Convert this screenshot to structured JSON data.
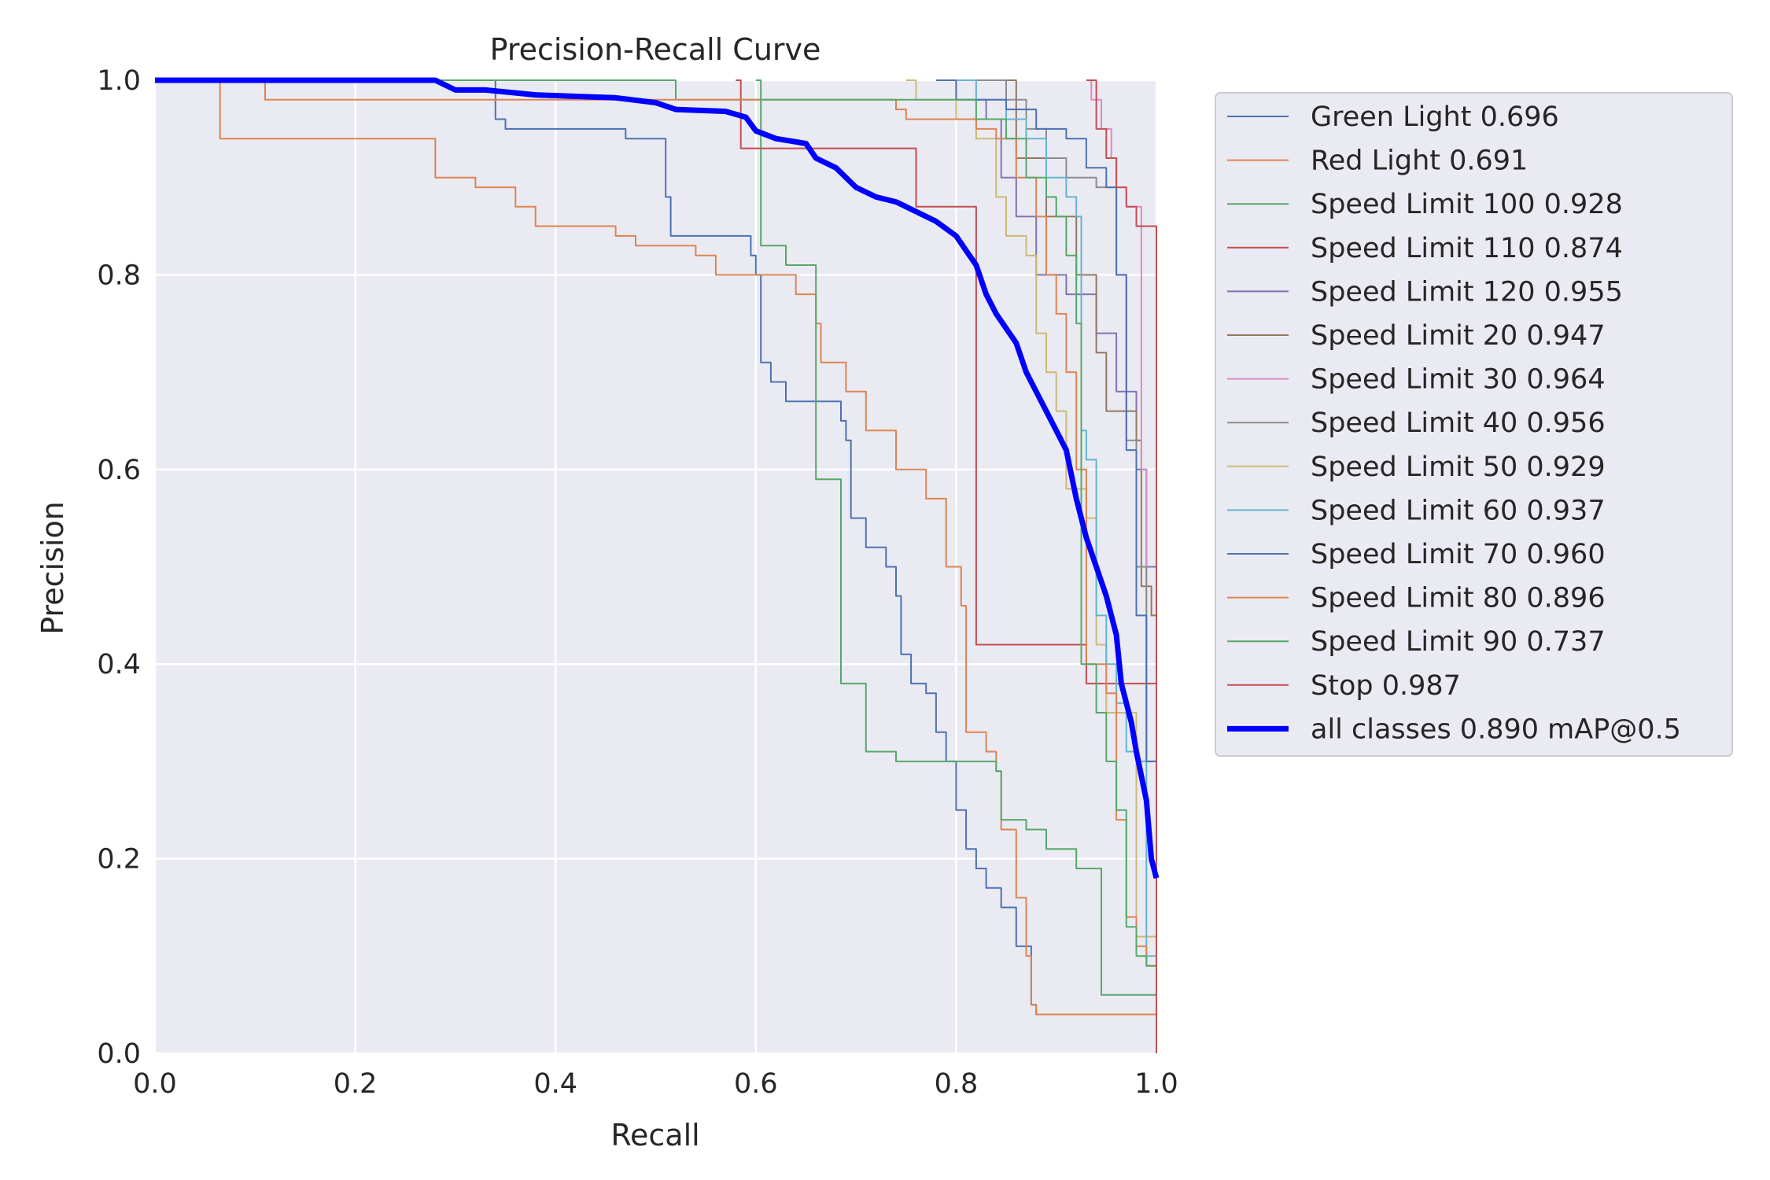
{
  "chart_data": {
    "type": "line",
    "title": "Precision-Recall Curve",
    "xlabel": "Recall",
    "ylabel": "Precision",
    "xlim": [
      0,
      1
    ],
    "ylim": [
      0,
      1
    ],
    "x_ticks": [
      "0.0",
      "0.2",
      "0.4",
      "0.6",
      "0.8",
      "1.0"
    ],
    "y_ticks": [
      "0.0",
      "0.2",
      "0.4",
      "0.6",
      "0.8",
      "1.0"
    ],
    "grid": true,
    "legend_position": "outside-right",
    "series": [
      {
        "name": "Green Light 0.696",
        "color": "#4c72b0",
        "points": [
          [
            0,
            1
          ],
          [
            0.335,
            1
          ],
          [
            0.34,
            0.96
          ],
          [
            0.35,
            0.95
          ],
          [
            0.46,
            0.95
          ],
          [
            0.47,
            0.94
          ],
          [
            0.5,
            0.94
          ],
          [
            0.51,
            0.88
          ],
          [
            0.515,
            0.84
          ],
          [
            0.585,
            0.84
          ],
          [
            0.595,
            0.82
          ],
          [
            0.6,
            0.8
          ],
          [
            0.605,
            0.71
          ],
          [
            0.615,
            0.69
          ],
          [
            0.63,
            0.67
          ],
          [
            0.67,
            0.67
          ],
          [
            0.685,
            0.65
          ],
          [
            0.69,
            0.63
          ],
          [
            0.695,
            0.55
          ],
          [
            0.71,
            0.52
          ],
          [
            0.73,
            0.5
          ],
          [
            0.74,
            0.47
          ],
          [
            0.745,
            0.41
          ],
          [
            0.755,
            0.38
          ],
          [
            0.77,
            0.37
          ],
          [
            0.78,
            0.33
          ],
          [
            0.79,
            0.3
          ],
          [
            0.8,
            0.25
          ],
          [
            0.81,
            0.21
          ],
          [
            0.82,
            0.19
          ],
          [
            0.83,
            0.17
          ],
          [
            0.845,
            0.15
          ],
          [
            0.86,
            0.11
          ],
          [
            0.875,
            0.05
          ],
          [
            0.88,
            0.04
          ],
          [
            1,
            0
          ]
        ]
      },
      {
        "name": "Red Light 0.691",
        "color": "#dd8452",
        "points": [
          [
            0,
            1
          ],
          [
            0.06,
            1
          ],
          [
            0.065,
            0.94
          ],
          [
            0.275,
            0.94
          ],
          [
            0.28,
            0.9
          ],
          [
            0.32,
            0.89
          ],
          [
            0.36,
            0.87
          ],
          [
            0.38,
            0.85
          ],
          [
            0.46,
            0.84
          ],
          [
            0.48,
            0.83
          ],
          [
            0.54,
            0.82
          ],
          [
            0.56,
            0.8
          ],
          [
            0.6,
            0.8
          ],
          [
            0.64,
            0.78
          ],
          [
            0.66,
            0.75
          ],
          [
            0.665,
            0.71
          ],
          [
            0.69,
            0.68
          ],
          [
            0.71,
            0.64
          ],
          [
            0.74,
            0.6
          ],
          [
            0.77,
            0.57
          ],
          [
            0.79,
            0.5
          ],
          [
            0.805,
            0.46
          ],
          [
            0.81,
            0.33
          ],
          [
            0.83,
            0.31
          ],
          [
            0.84,
            0.29
          ],
          [
            0.845,
            0.23
          ],
          [
            0.86,
            0.16
          ],
          [
            0.87,
            0.1
          ],
          [
            0.875,
            0.05
          ],
          [
            0.88,
            0.04
          ],
          [
            1,
            0
          ]
        ]
      },
      {
        "name": "Speed Limit 100 0.928",
        "color": "#55a868",
        "points": [
          [
            0,
            1
          ],
          [
            0.52,
            1
          ],
          [
            0.52,
            0.98
          ],
          [
            0.6,
            0.98
          ],
          [
            0.605,
            0.83
          ],
          [
            0.63,
            0.81
          ],
          [
            0.66,
            0.59
          ],
          [
            0.685,
            0.38
          ],
          [
            0.71,
            0.31
          ],
          [
            0.74,
            0.3
          ],
          [
            0.84,
            0.29
          ],
          [
            0.845,
            0.24
          ],
          [
            0.87,
            0.23
          ],
          [
            0.89,
            0.21
          ],
          [
            0.92,
            0.19
          ],
          [
            0.945,
            0.06
          ],
          [
            1,
            0
          ]
        ]
      },
      {
        "name": "Speed Limit 110 0.874",
        "color": "#c44e52",
        "points": [
          [
            0.58,
            1
          ],
          [
            0.585,
            0.93
          ],
          [
            0.75,
            0.93
          ],
          [
            0.76,
            0.87
          ],
          [
            0.815,
            0.87
          ],
          [
            0.82,
            0.42
          ],
          [
            0.92,
            0.42
          ],
          [
            0.93,
            0.38
          ],
          [
            1,
            0.38
          ],
          [
            1,
            0
          ]
        ]
      },
      {
        "name": "Speed Limit 120 0.955",
        "color": "#8172b3",
        "points": [
          [
            0.8,
            1
          ],
          [
            0.8,
            0.98
          ],
          [
            0.83,
            0.96
          ],
          [
            0.845,
            0.9
          ],
          [
            0.86,
            0.86
          ],
          [
            0.88,
            0.8
          ],
          [
            0.91,
            0.78
          ],
          [
            0.94,
            0.74
          ],
          [
            0.96,
            0.68
          ],
          [
            0.98,
            0.6
          ],
          [
            0.99,
            0.5
          ],
          [
            1,
            0.48
          ],
          [
            1,
            0
          ]
        ]
      },
      {
        "name": "Speed Limit 20 0.947",
        "color": "#937860",
        "points": [
          [
            0.85,
            1
          ],
          [
            0.86,
            0.92
          ],
          [
            0.89,
            0.86
          ],
          [
            0.92,
            0.8
          ],
          [
            0.94,
            0.72
          ],
          [
            0.95,
            0.66
          ],
          [
            0.98,
            0.63
          ],
          [
            0.985,
            0.48
          ],
          [
            0.995,
            0.45
          ],
          [
            1,
            0.45
          ],
          [
            1,
            0
          ]
        ]
      },
      {
        "name": "Speed Limit 30 0.964",
        "color": "#da8bc3",
        "points": [
          [
            0.93,
            1
          ],
          [
            0.935,
            0.98
          ],
          [
            0.945,
            0.95
          ],
          [
            0.955,
            0.92
          ],
          [
            0.96,
            0.89
          ],
          [
            0.97,
            0.87
          ],
          [
            0.985,
            0.6
          ],
          [
            0.99,
            0.3
          ],
          [
            1,
            0.15
          ],
          [
            1,
            0
          ]
        ]
      },
      {
        "name": "Speed Limit 40 0.956",
        "color": "#8c8c8c",
        "points": [
          [
            0.81,
            1
          ],
          [
            0.85,
            0.98
          ],
          [
            0.87,
            0.95
          ],
          [
            0.89,
            0.92
          ],
          [
            0.91,
            0.9
          ],
          [
            0.94,
            0.89
          ],
          [
            0.96,
            0.8
          ],
          [
            0.97,
            0.63
          ],
          [
            0.98,
            0.5
          ],
          [
            0.99,
            0.3
          ],
          [
            1,
            0.25
          ],
          [
            1,
            0
          ]
        ]
      },
      {
        "name": "Speed Limit 50 0.929",
        "color": "#ccb974",
        "points": [
          [
            0.75,
            1
          ],
          [
            0.76,
            0.98
          ],
          [
            0.8,
            0.96
          ],
          [
            0.82,
            0.94
          ],
          [
            0.84,
            0.88
          ],
          [
            0.85,
            0.84
          ],
          [
            0.87,
            0.82
          ],
          [
            0.88,
            0.74
          ],
          [
            0.89,
            0.7
          ],
          [
            0.9,
            0.66
          ],
          [
            0.91,
            0.58
          ],
          [
            0.93,
            0.55
          ],
          [
            0.94,
            0.42
          ],
          [
            0.95,
            0.35
          ],
          [
            0.98,
            0.12
          ],
          [
            1,
            0.05
          ],
          [
            1,
            0
          ]
        ]
      },
      {
        "name": "Speed Limit 60 0.937",
        "color": "#64b5cd",
        "points": [
          [
            0.8,
            1
          ],
          [
            0.82,
            0.98
          ],
          [
            0.85,
            0.96
          ],
          [
            0.87,
            0.94
          ],
          [
            0.89,
            0.9
          ],
          [
            0.91,
            0.88
          ],
          [
            0.92,
            0.86
          ],
          [
            0.925,
            0.64
          ],
          [
            0.93,
            0.61
          ],
          [
            0.94,
            0.45
          ],
          [
            0.95,
            0.4
          ],
          [
            0.96,
            0.36
          ],
          [
            0.97,
            0.31
          ],
          [
            0.98,
            0.3
          ],
          [
            0.99,
            0.1
          ],
          [
            1,
            0.08
          ],
          [
            1,
            0
          ]
        ]
      },
      {
        "name": "Speed Limit 70 0.960",
        "color": "#4c72b0",
        "points": [
          [
            0.78,
            1
          ],
          [
            0.8,
            0.98
          ],
          [
            0.85,
            0.97
          ],
          [
            0.88,
            0.95
          ],
          [
            0.91,
            0.94
          ],
          [
            0.93,
            0.91
          ],
          [
            0.95,
            0.89
          ],
          [
            0.96,
            0.8
          ],
          [
            0.97,
            0.62
          ],
          [
            0.98,
            0.45
          ],
          [
            0.99,
            0.3
          ],
          [
            1,
            0.2
          ],
          [
            1,
            0
          ]
        ]
      },
      {
        "name": "Speed Limit 80 0.896",
        "color": "#dd8452",
        "points": [
          [
            0,
            1
          ],
          [
            0.1,
            1
          ],
          [
            0.11,
            0.98
          ],
          [
            0.7,
            0.98
          ],
          [
            0.74,
            0.97
          ],
          [
            0.75,
            0.96
          ],
          [
            0.78,
            0.96
          ],
          [
            0.82,
            0.95
          ],
          [
            0.84,
            0.94
          ],
          [
            0.86,
            0.9
          ],
          [
            0.88,
            0.86
          ],
          [
            0.89,
            0.8
          ],
          [
            0.9,
            0.76
          ],
          [
            0.91,
            0.7
          ],
          [
            0.92,
            0.6
          ],
          [
            0.93,
            0.4
          ],
          [
            0.95,
            0.37
          ],
          [
            0.96,
            0.24
          ],
          [
            0.97,
            0.14
          ],
          [
            0.98,
            0.11
          ],
          [
            0.99,
            0.09
          ],
          [
            1,
            0
          ]
        ]
      },
      {
        "name": "Speed Limit 90 0.737",
        "color": "#55a868",
        "points": [
          [
            0.6,
            1
          ],
          [
            0.605,
            0.98
          ],
          [
            0.8,
            0.98
          ],
          [
            0.82,
            0.96
          ],
          [
            0.85,
            0.94
          ],
          [
            0.87,
            0.9
          ],
          [
            0.89,
            0.88
          ],
          [
            0.9,
            0.86
          ],
          [
            0.91,
            0.82
          ],
          [
            0.92,
            0.75
          ],
          [
            0.925,
            0.4
          ],
          [
            0.94,
            0.35
          ],
          [
            0.95,
            0.3
          ],
          [
            0.96,
            0.25
          ],
          [
            0.97,
            0.13
          ],
          [
            0.98,
            0.1
          ],
          [
            0.99,
            0.09
          ],
          [
            1,
            0
          ]
        ]
      },
      {
        "name": "Stop 0.987",
        "color": "#c44e52",
        "points": [
          [
            0.93,
            1
          ],
          [
            0.94,
            0.95
          ],
          [
            0.95,
            0.92
          ],
          [
            0.96,
            0.89
          ],
          [
            0.97,
            0.87
          ],
          [
            0.98,
            0.85
          ],
          [
            1,
            0.84
          ],
          [
            1,
            0
          ]
        ]
      },
      {
        "name": "all classes 0.890 mAP@0.5",
        "color": "#0000ff",
        "bold": true,
        "points": [
          [
            0,
            1
          ],
          [
            0.28,
            1
          ],
          [
            0.3,
            0.99
          ],
          [
            0.33,
            0.99
          ],
          [
            0.38,
            0.985
          ],
          [
            0.46,
            0.982
          ],
          [
            0.5,
            0.977
          ],
          [
            0.52,
            0.97
          ],
          [
            0.57,
            0.968
          ],
          [
            0.59,
            0.962
          ],
          [
            0.6,
            0.948
          ],
          [
            0.62,
            0.94
          ],
          [
            0.65,
            0.935
          ],
          [
            0.66,
            0.92
          ],
          [
            0.68,
            0.91
          ],
          [
            0.7,
            0.89
          ],
          [
            0.72,
            0.88
          ],
          [
            0.74,
            0.875
          ],
          [
            0.76,
            0.865
          ],
          [
            0.78,
            0.855
          ],
          [
            0.8,
            0.84
          ],
          [
            0.81,
            0.825
          ],
          [
            0.82,
            0.81
          ],
          [
            0.83,
            0.78
          ],
          [
            0.84,
            0.76
          ],
          [
            0.86,
            0.73
          ],
          [
            0.87,
            0.7
          ],
          [
            0.88,
            0.68
          ],
          [
            0.89,
            0.66
          ],
          [
            0.9,
            0.64
          ],
          [
            0.91,
            0.62
          ],
          [
            0.92,
            0.57
          ],
          [
            0.93,
            0.53
          ],
          [
            0.94,
            0.5
          ],
          [
            0.95,
            0.47
          ],
          [
            0.96,
            0.43
          ],
          [
            0.965,
            0.38
          ],
          [
            0.975,
            0.34
          ],
          [
            0.98,
            0.31
          ],
          [
            0.99,
            0.26
          ],
          [
            0.995,
            0.2
          ],
          [
            1,
            0.18
          ]
        ]
      }
    ]
  }
}
